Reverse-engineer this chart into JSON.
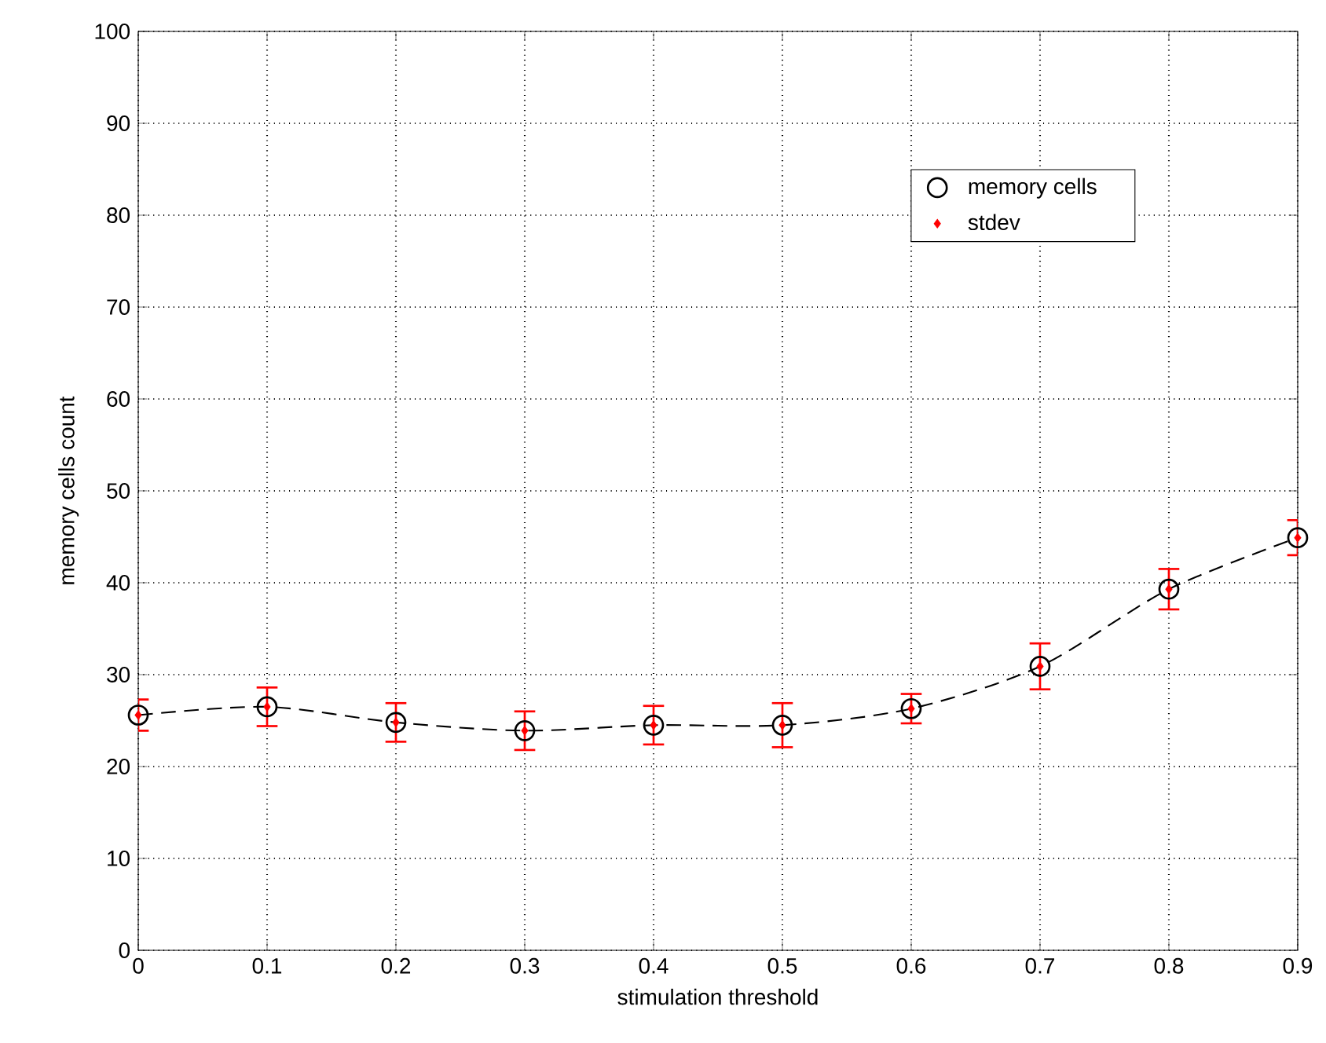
{
  "chart_data": {
    "type": "scatter",
    "xlabel": "stimulation threshold",
    "ylabel": "memory cells count",
    "x": [
      0,
      0.1,
      0.2,
      0.3,
      0.4,
      0.5,
      0.6,
      0.7,
      0.8,
      0.9
    ],
    "series": [
      {
        "name": "memory cells",
        "color": "#000000",
        "marker": "circle",
        "values": [
          25.6,
          26.5,
          24.8,
          23.9,
          24.5,
          24.5,
          26.3,
          30.9,
          39.3,
          44.9
        ]
      },
      {
        "name": "stdev",
        "color": "#ff0000",
        "marker": "diamond",
        "values": [
          25.6,
          26.5,
          24.8,
          23.9,
          24.5,
          24.5,
          26.3,
          30.9,
          39.3,
          44.9
        ],
        "errors": [
          1.7,
          2.1,
          2.1,
          2.1,
          2.1,
          2.4,
          1.6,
          2.5,
          2.2,
          1.9
        ]
      },
      {
        "type": "line",
        "color": "#000000",
        "marker": "none",
        "line_style": "dashed",
        "values": [
          25.6,
          26.5,
          24.8,
          23.9,
          24.5,
          24.5,
          26.3,
          30.9,
          39.3,
          44.9
        ]
      }
    ],
    "xlim": [
      0,
      0.9
    ],
    "ylim": [
      0,
      100
    ],
    "xticks": [
      0,
      0.1,
      0.2,
      0.3,
      0.4,
      0.5,
      0.6,
      0.7,
      0.8,
      0.9
    ],
    "yticks": [
      0,
      10,
      20,
      30,
      40,
      50,
      60,
      70,
      80,
      90,
      100
    ],
    "grid": true,
    "legend": "top right"
  }
}
